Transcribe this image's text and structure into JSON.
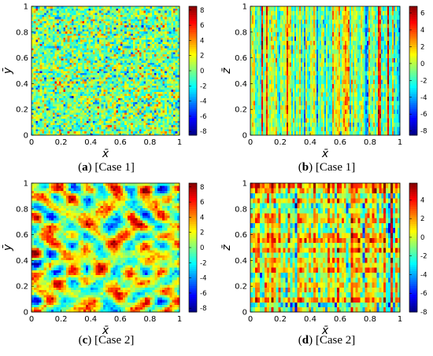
{
  "chart_data": [
    {
      "type": "heatmap",
      "panel_letter": "a",
      "caption": "[Case 1]",
      "xlabel": "x̄",
      "ylabel": "ȳ",
      "x_ticks": [
        "0",
        "0.2",
        "0.4",
        "0.6",
        "0.8",
        "1"
      ],
      "y_ticks": [
        "0",
        "0.2",
        "0.4",
        "0.6",
        "0.8",
        "1"
      ],
      "xlim": [
        0,
        1
      ],
      "ylim": [
        0,
        1
      ],
      "colorbar_ticks": [
        "8",
        "6",
        "4",
        "2",
        "0",
        "-2",
        "-4",
        "-6",
        "-8"
      ],
      "colorbar_range": [
        -8.5,
        8.5
      ],
      "colormap": "jet",
      "field": "fine-grained isotropic random field"
    },
    {
      "type": "heatmap",
      "panel_letter": "b",
      "caption": "[Case 1]",
      "xlabel": "x̄",
      "ylabel": "z̄",
      "x_ticks": [
        "0",
        "0.2",
        "0.4",
        "0.6",
        "0.8",
        "1"
      ],
      "y_ticks": [
        "0",
        "0.2",
        "0.4",
        "0.6",
        "0.8",
        "1"
      ],
      "xlim": [
        0,
        1
      ],
      "ylim": [
        0,
        1
      ],
      "colorbar_ticks": [
        "6",
        "4",
        "2",
        "0",
        "-2",
        "-4",
        "-6",
        "-8"
      ],
      "colorbar_range": [
        -8.5,
        6.8
      ],
      "colormap": "jet",
      "field": "vertically streaked random field"
    },
    {
      "type": "heatmap",
      "panel_letter": "c",
      "caption": "[Case 2]",
      "xlabel": "x̄",
      "ylabel": "ȳ",
      "x_ticks": [
        "0",
        "0.2",
        "0.4",
        "0.6",
        "0.8",
        "1"
      ],
      "y_ticks": [
        "0",
        "0.2",
        "0.4",
        "0.6",
        "0.8",
        "1"
      ],
      "xlim": [
        0,
        1
      ],
      "ylim": [
        0,
        1
      ],
      "colorbar_ticks": [
        "8",
        "6",
        "4",
        "2",
        "0",
        "-2",
        "-4",
        "-6",
        "-8"
      ],
      "colorbar_range": [
        -8.5,
        8.5
      ],
      "colormap": "jet",
      "field": "large-scale correlated random field"
    },
    {
      "type": "heatmap",
      "panel_letter": "d",
      "caption": "[Case 2]",
      "xlabel": "x̄",
      "ylabel": "z̄",
      "x_ticks": [
        "0",
        "0.2",
        "0.4",
        "0.6",
        "0.8",
        "1"
      ],
      "y_ticks": [
        "0",
        "0.2",
        "0.4",
        "0.6",
        "0.8",
        "1"
      ],
      "xlim": [
        0,
        1
      ],
      "ylim": [
        0,
        1
      ],
      "colorbar_ticks": [
        "4",
        "2",
        "0",
        "-2",
        "-4",
        "-6",
        "-8"
      ],
      "colorbar_range": [
        -8,
        5.8
      ],
      "colormap": "jet",
      "field": "blocky layered random field"
    }
  ]
}
